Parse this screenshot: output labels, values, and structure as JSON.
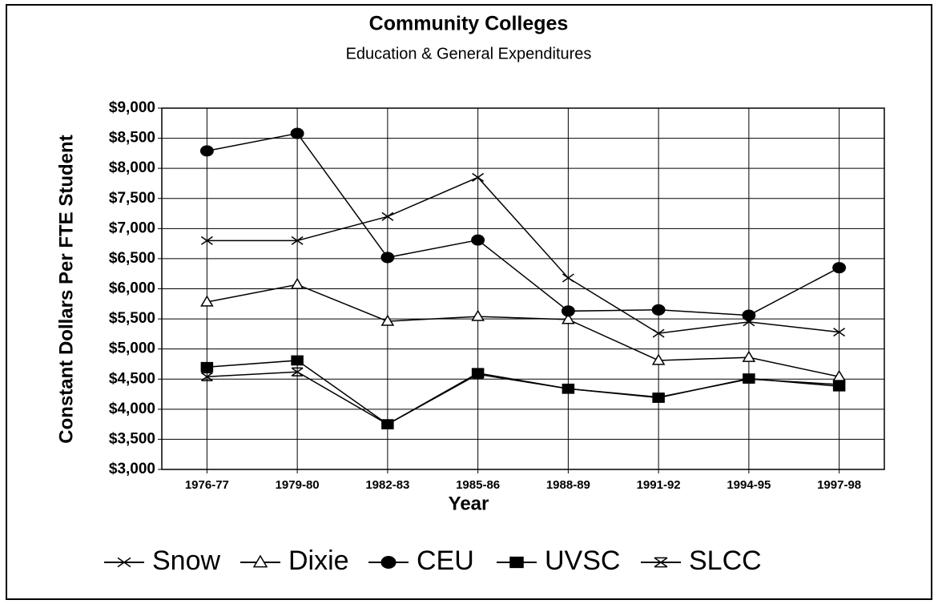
{
  "chart_data": {
    "type": "line",
    "title": "Community Colleges",
    "subtitle": "Education & General Expenditures",
    "xlabel": "Year",
    "ylabel": "Constant Dollars Per FTE Student",
    "categories": [
      "1976-77",
      "1979-80",
      "1982-83",
      "1985-86",
      "1988-89",
      "1991-92",
      "1994-95",
      "1997-98"
    ],
    "series": [
      {
        "name": "Snow",
        "color": "#000000",
        "marker": "x",
        "values": [
          6800,
          6800,
          7200,
          7850,
          6180,
          5260,
          5450,
          5280
        ]
      },
      {
        "name": "Dixie",
        "color": "#000000",
        "marker": "triangle",
        "values": [
          5780,
          6070,
          5460,
          5540,
          5490,
          4810,
          4860,
          4540
        ]
      },
      {
        "name": "CEU",
        "color": "#000000",
        "marker": "circle",
        "values": [
          8290,
          8580,
          6520,
          6810,
          5630,
          5650,
          5560,
          6350
        ]
      },
      {
        "name": "UVSC",
        "color": "#000000",
        "marker": "square",
        "values": [
          4700,
          4810,
          3750,
          4600,
          4340,
          4190,
          4510,
          4380
        ]
      },
      {
        "name": "SLCC",
        "color": "#000000",
        "marker": "star",
        "values": [
          4540,
          4620,
          3750,
          4580,
          4340,
          4200,
          4500,
          4410
        ]
      }
    ],
    "ylim": [
      3000,
      9000
    ],
    "yticks": [
      {
        "value": 3000,
        "label": "$3,000"
      },
      {
        "value": 3500,
        "label": "$3,500"
      },
      {
        "value": 4000,
        "label": "$4,000"
      },
      {
        "value": 4500,
        "label": "$4,500"
      },
      {
        "value": 5000,
        "label": "$5,000"
      },
      {
        "value": 5500,
        "label": "$5,500"
      },
      {
        "value": 6000,
        "label": "$6,000"
      },
      {
        "value": 6500,
        "label": "$6,500"
      },
      {
        "value": 7000,
        "label": "$7,000"
      },
      {
        "value": 7500,
        "label": "$7,500"
      },
      {
        "value": 8000,
        "label": "$8,000"
      },
      {
        "value": 8500,
        "label": "$8,500"
      },
      {
        "value": 9000,
        "label": "$9,000"
      }
    ],
    "grid": true,
    "legend": "bottom"
  }
}
